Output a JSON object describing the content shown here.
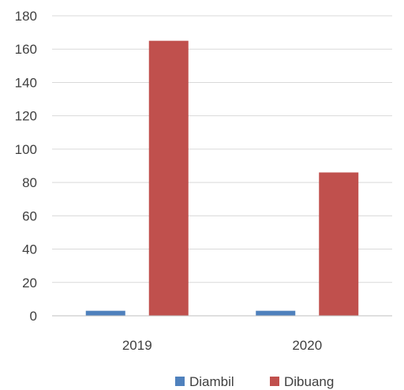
{
  "chart_data": {
    "type": "bar",
    "categories": [
      "2019",
      "2020"
    ],
    "series": [
      {
        "name": "Diambil",
        "values": [
          3,
          3
        ],
        "color": "#4F81BD"
      },
      {
        "name": "Dibuang",
        "values": [
          165,
          86
        ],
        "color": "#C0504D"
      }
    ],
    "ylim": [
      0,
      180
    ],
    "yticks": [
      0,
      20,
      40,
      60,
      80,
      100,
      120,
      140,
      160,
      180
    ],
    "grid": true,
    "legend_position": "bottom",
    "title": "",
    "xlabel": "",
    "ylabel": ""
  }
}
